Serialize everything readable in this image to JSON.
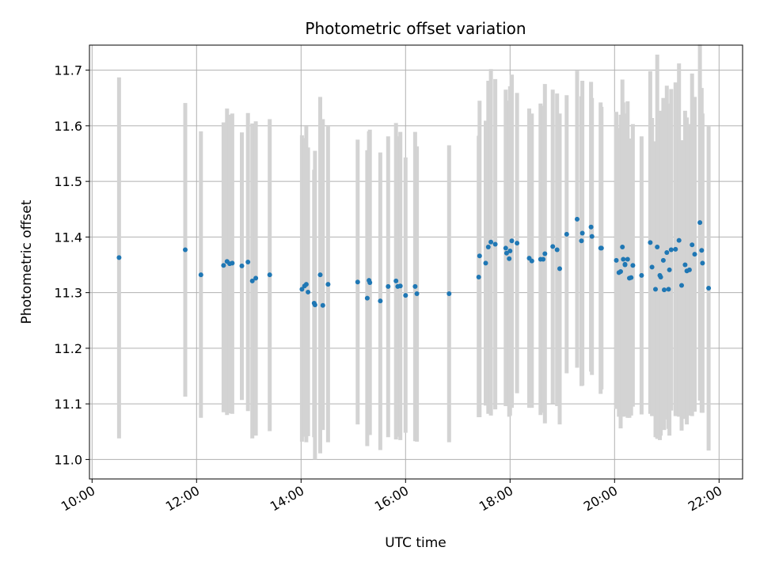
{
  "chart_data": {
    "type": "scatter",
    "title": "Photometric offset variation",
    "xlabel": "UTC time",
    "ylabel": "Photometric offset",
    "xlim": [
      "09:57",
      "22:27"
    ],
    "ylim": [
      10.965,
      11.745
    ],
    "x_ticks": [
      "10:00",
      "12:00",
      "14:00",
      "16:00",
      "18:00",
      "20:00",
      "22:00"
    ],
    "y_ticks": [
      "11.0",
      "11.1",
      "11.2",
      "11.3",
      "11.4",
      "11.5",
      "11.6",
      "11.7"
    ],
    "grid": true,
    "colors": {
      "points": "#1f77b4",
      "error_bars": "#d3d3d3",
      "grid": "#b0b0b0"
    },
    "series": [
      {
        "x": [
          "10:31",
          "11:47",
          "12:05",
          "12:31",
          "12:35",
          "12:38",
          "12:41",
          "12:52",
          "12:59",
          "13:04",
          "13:08",
          "13:24",
          "14:01",
          "14:04",
          "14:06",
          "14:08",
          "14:15",
          "14:16",
          "14:22",
          "14:25",
          "14:31",
          "15:05",
          "15:16",
          "15:18",
          "15:19",
          "15:31",
          "15:40",
          "15:49",
          "15:51",
          "15:54",
          "16:00",
          "16:11",
          "16:13",
          "16:50",
          "17:24",
          "17:25",
          "17:32",
          "17:35",
          "17:38",
          "17:43",
          "17:55",
          "17:56",
          "17:59",
          "18:00",
          "18:02",
          "18:08",
          "18:22",
          "18:25",
          "18:35",
          "18:38",
          "18:40",
          "18:49",
          "18:54",
          "18:57",
          "19:05",
          "19:17",
          "19:22",
          "19:23",
          "19:33",
          "19:34",
          "19:44",
          "19:45",
          "20:02",
          "20:05",
          "20:07",
          "20:09",
          "20:10",
          "20:12",
          "20:12",
          "20:15",
          "20:17",
          "20:19",
          "20:21",
          "20:31",
          "20:41",
          "20:43",
          "20:47",
          "20:49",
          "20:52",
          "20:53",
          "20:56",
          "20:57",
          "21:00",
          "21:02",
          "21:03",
          "21:05",
          "21:10",
          "21:14",
          "21:17",
          "21:21",
          "21:23",
          "21:26",
          "21:29",
          "21:32",
          "21:38",
          "21:40",
          "21:41",
          "21:48"
        ],
        "y": [
          11.363,
          11.377,
          11.332,
          11.349,
          11.356,
          11.352,
          11.353,
          11.348,
          11.355,
          11.321,
          11.326,
          11.332,
          11.306,
          11.312,
          11.315,
          11.301,
          11.281,
          11.278,
          11.332,
          11.277,
          11.315,
          11.319,
          11.29,
          11.322,
          11.318,
          11.285,
          11.311,
          11.321,
          11.311,
          11.312,
          11.295,
          11.311,
          11.298,
          11.298,
          11.328,
          11.366,
          11.353,
          11.382,
          11.391,
          11.387,
          11.38,
          11.371,
          11.361,
          11.375,
          11.393,
          11.389,
          11.362,
          11.357,
          11.36,
          11.36,
          11.37,
          11.383,
          11.377,
          11.343,
          11.405,
          11.432,
          11.393,
          11.407,
          11.418,
          11.401,
          11.38,
          11.38,
          11.358,
          11.336,
          11.338,
          11.382,
          11.36,
          11.35,
          11.351,
          11.36,
          11.326,
          11.327,
          11.349,
          11.331,
          11.39,
          11.346,
          11.306,
          11.382,
          11.331,
          11.328,
          11.358,
          11.305,
          11.372,
          11.306,
          11.341,
          11.377,
          11.378,
          11.394,
          11.313,
          11.35,
          11.339,
          11.341,
          11.386,
          11.369,
          11.426,
          11.376,
          11.353,
          11.308
        ],
        "err_low": [
          11.038,
          11.113,
          11.075,
          11.085,
          11.08,
          11.083,
          11.082,
          11.107,
          11.087,
          11.038,
          11.043,
          11.051,
          11.032,
          11.041,
          11.031,
          11.042,
          11.04,
          11.0,
          11.011,
          11.053,
          11.031,
          11.063,
          11.024,
          11.052,
          11.044,
          11.017,
          11.04,
          11.036,
          11.041,
          11.035,
          11.048,
          11.033,
          11.032,
          11.031,
          11.076,
          11.076,
          11.097,
          11.082,
          11.079,
          11.09,
          11.096,
          11.098,
          11.077,
          11.079,
          11.093,
          11.119,
          11.093,
          11.093,
          11.08,
          11.084,
          11.065,
          11.101,
          11.096,
          11.063,
          11.155,
          11.165,
          11.132,
          11.133,
          11.158,
          11.152,
          11.118,
          11.126,
          11.091,
          11.077,
          11.056,
          11.081,
          11.077,
          11.078,
          11.081,
          11.075,
          11.075,
          11.079,
          11.095,
          11.081,
          11.082,
          11.078,
          11.04,
          11.037,
          11.035,
          11.043,
          11.067,
          11.053,
          11.072,
          11.055,
          11.043,
          11.088,
          11.078,
          11.077,
          11.052,
          11.073,
          11.063,
          11.079,
          11.078,
          11.086,
          11.106,
          11.084,
          11.084,
          11.016
        ],
        "err_high": [
          11.687,
          11.641,
          11.59,
          11.606,
          11.631,
          11.62,
          11.622,
          11.588,
          11.623,
          11.604,
          11.608,
          11.612,
          11.583,
          11.578,
          11.599,
          11.561,
          11.521,
          11.555,
          11.652,
          11.612,
          11.6,
          11.575,
          11.556,
          11.59,
          11.593,
          11.552,
          11.581,
          11.605,
          11.581,
          11.589,
          11.543,
          11.589,
          11.563,
          11.565,
          11.582,
          11.645,
          11.609,
          11.681,
          11.702,
          11.684,
          11.665,
          11.645,
          11.645,
          11.671,
          11.692,
          11.659,
          11.631,
          11.622,
          11.64,
          11.636,
          11.675,
          11.665,
          11.658,
          11.622,
          11.655,
          11.699,
          11.653,
          11.681,
          11.679,
          11.65,
          11.642,
          11.634,
          11.625,
          11.596,
          11.62,
          11.683,
          11.642,
          11.622,
          11.62,
          11.644,
          11.577,
          11.575,
          11.603,
          11.581,
          11.698,
          11.614,
          11.572,
          11.728,
          11.627,
          11.613,
          11.65,
          11.556,
          11.672,
          11.557,
          11.64,
          11.666,
          11.678,
          11.712,
          11.574,
          11.627,
          11.615,
          11.603,
          11.694,
          11.652,
          11.746,
          11.668,
          11.622,
          11.6
        ]
      }
    ]
  }
}
